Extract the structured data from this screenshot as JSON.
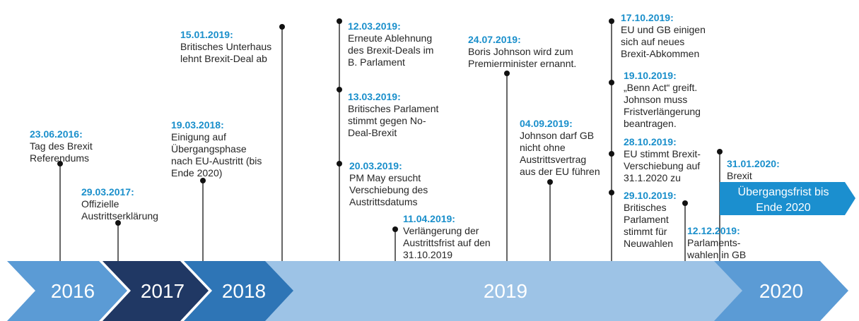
{
  "events": [
    {
      "date": "23.06.2016:",
      "lines": [
        "Tag des Brexit",
        "Referendums"
      ]
    },
    {
      "date": "29.03.2017:",
      "lines": [
        "Offizielle",
        "Austrittserklärung"
      ]
    },
    {
      "date": "19.03.2018:",
      "lines": [
        "Einigung auf",
        "Übergangsphase",
        "nach EU-Austritt (bis",
        "Ende 2020)"
      ]
    },
    {
      "date": "15.01.2019:",
      "lines": [
        "Britisches Unterhaus",
        "lehnt Brexit-Deal ab"
      ]
    },
    {
      "date": "12.03.2019:",
      "lines": [
        "Erneute Ablehnung",
        "des Brexit-Deals im",
        "B. Parlament"
      ]
    },
    {
      "date": "13.03.2019:",
      "lines": [
        "Britisches Parlament",
        "stimmt gegen No-",
        "Deal-Brexit"
      ]
    },
    {
      "date": "20.03.2019:",
      "lines": [
        "PM May ersucht",
        "Verschiebung des",
        "Austrittsdatums"
      ]
    },
    {
      "date": "11.04.2019:",
      "lines": [
        "Verlängerung der",
        "Austrittsfrist auf den",
        "31.10.2019"
      ]
    },
    {
      "date": "24.07.2019:",
      "lines": [
        "Boris Johnson wird zum",
        "Premierminister ernannt."
      ]
    },
    {
      "date": "04.09.2019:",
      "lines": [
        "Johnson darf GB",
        "nicht ohne",
        "Austrittsvertrag",
        "aus der EU führen"
      ]
    },
    {
      "date": "17.10.2019:",
      "lines": [
        "EU und GB einigen",
        "sich auf neues",
        "Brexit-Abkommen"
      ]
    },
    {
      "date": "19.10.2019:",
      "lines": [
        "„Benn Act“ greift.",
        "Johnson muss",
        "Fristverlängerung",
        "beantragen."
      ]
    },
    {
      "date": "28.10.2019:",
      "lines": [
        "EU stimmt Brexit-",
        "Verschiebung auf",
        "31.1.2020 zu"
      ]
    },
    {
      "date": "29.10.2019:",
      "lines": [
        "Britisches",
        "Parlament",
        "stimmt für",
        "Neuwahlen"
      ]
    },
    {
      "date": "12.12.2019:",
      "lines": [
        "Parlaments-",
        "wahlen in GB"
      ]
    },
    {
      "date": "31.01.2020:",
      "lines": [
        "Brexit"
      ]
    }
  ],
  "years": [
    "2016",
    "2017",
    "2018",
    "2019",
    "2020"
  ],
  "transition_box": [
    "Übergangsfrist bis",
    "Ende 2020"
  ]
}
